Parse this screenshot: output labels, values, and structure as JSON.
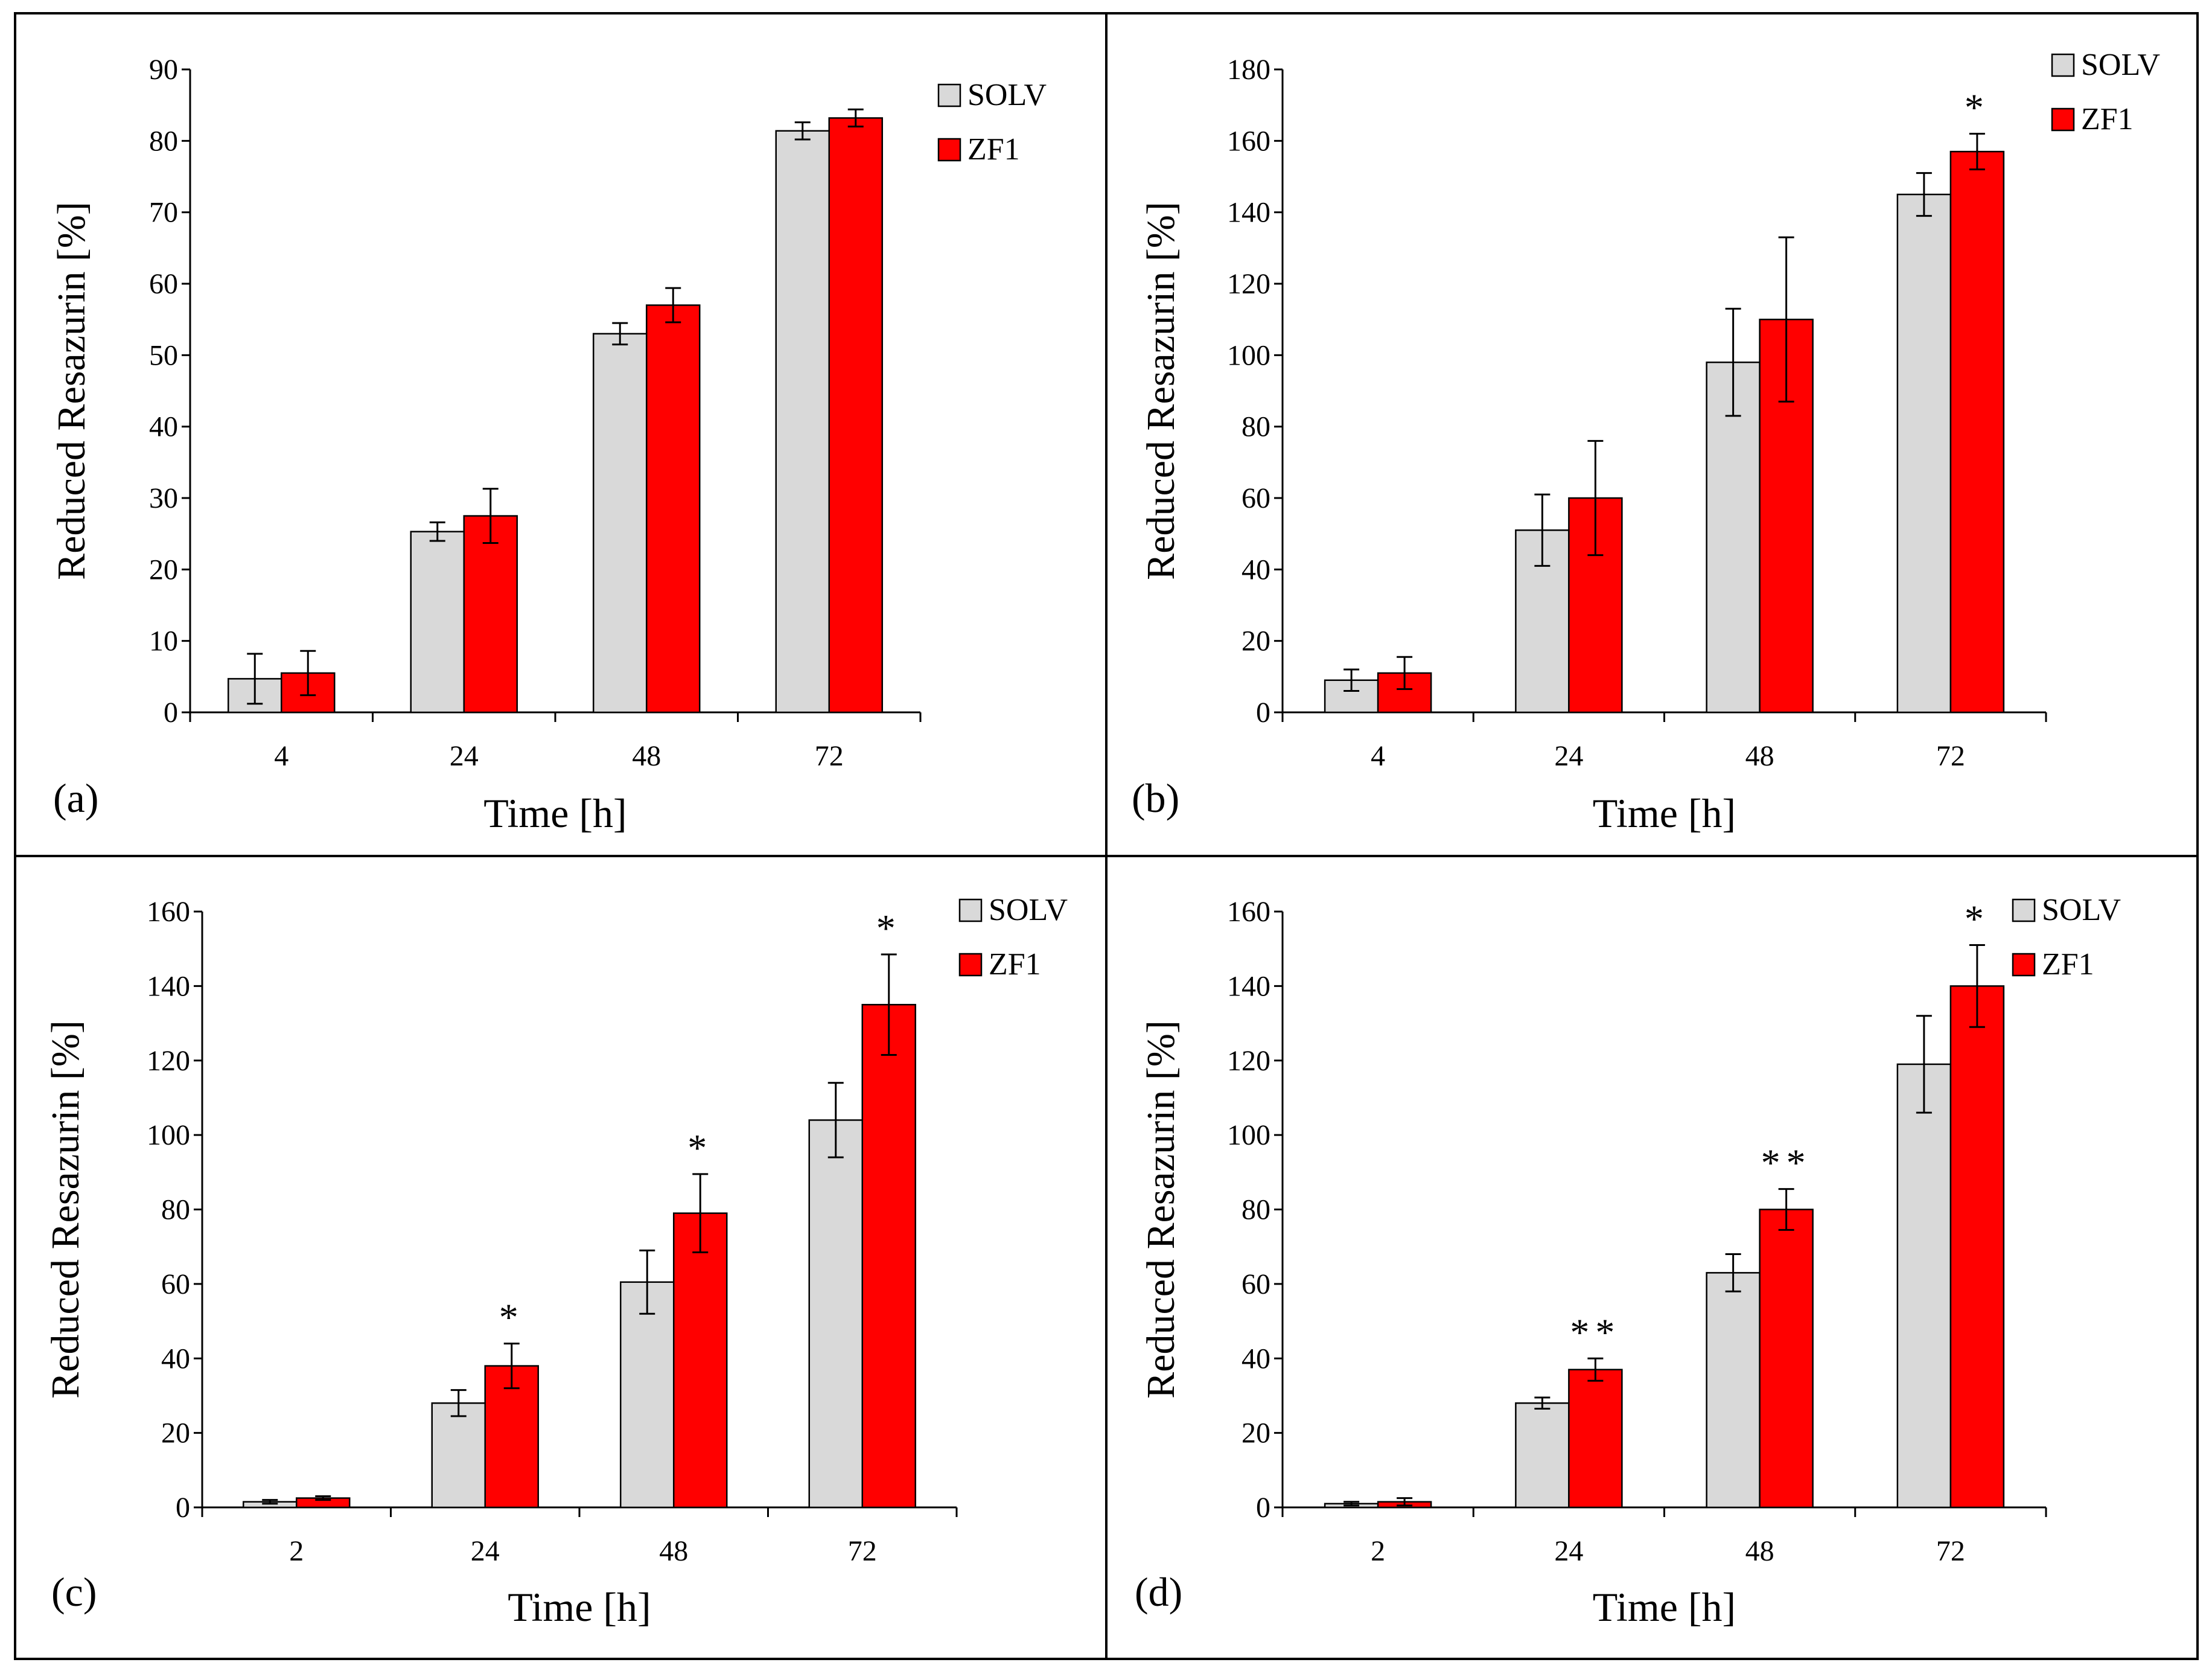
{
  "colors": {
    "solv": "#d9d9d9",
    "zf1": "#ff0000",
    "stroke": "#000000",
    "frame": "#000000"
  },
  "legend_icons": [
    "solv-swatch-icon",
    "zf1-swatch-icon"
  ],
  "chart_data": [
    {
      "type": "bar",
      "panel_label": "(a)",
      "categories": [
        "4",
        "24",
        "48",
        "72"
      ],
      "series": [
        {
          "name": "SOLV",
          "values": [
            4.7,
            25.3,
            53.0,
            81.4
          ],
          "errors": [
            3.5,
            1.3,
            1.5,
            1.2
          ]
        },
        {
          "name": "ZF1",
          "values": [
            5.5,
            27.5,
            57.0,
            83.2
          ],
          "errors": [
            3.1,
            3.8,
            2.4,
            1.2
          ]
        }
      ],
      "significance": [
        "",
        "",
        "",
        ""
      ],
      "xlabel": "Time [h]",
      "ylabel": "Reduced Resazurin [%]",
      "ylim": [
        0,
        90
      ],
      "yticks": [
        0,
        10,
        20,
        30,
        40,
        50,
        60,
        70,
        80,
        90
      ],
      "legend": "top-right",
      "grid": false
    },
    {
      "type": "bar",
      "panel_label": "(b)",
      "categories": [
        "4",
        "24",
        "48",
        "72"
      ],
      "series": [
        {
          "name": "SOLV",
          "values": [
            9,
            51,
            98,
            145
          ],
          "errors": [
            3,
            10,
            15,
            6
          ]
        },
        {
          "name": "ZF1",
          "values": [
            11,
            60,
            110,
            157
          ],
          "errors": [
            4.5,
            16,
            23,
            5
          ]
        }
      ],
      "significance": [
        "",
        "",
        "",
        "*"
      ],
      "xlabel": "Time [h]",
      "ylabel": "Reduced Resazurin [%]",
      "ylim": [
        0,
        180
      ],
      "yticks": [
        0,
        20,
        40,
        60,
        80,
        100,
        120,
        140,
        160,
        180
      ],
      "legend": "top-right",
      "grid": false
    },
    {
      "type": "bar",
      "panel_label": "(c)",
      "categories": [
        "2",
        "24",
        "48",
        "72"
      ],
      "series": [
        {
          "name": "SOLV",
          "values": [
            1.5,
            28,
            60.5,
            104
          ],
          "errors": [
            0.5,
            3.5,
            8.5,
            10
          ]
        },
        {
          "name": "ZF1",
          "values": [
            2.5,
            38,
            79,
            135
          ],
          "errors": [
            0.5,
            6,
            10.5,
            13.5
          ]
        }
      ],
      "significance": [
        "",
        "*",
        "*",
        "*"
      ],
      "xlabel": "Time [h]",
      "ylabel": "Reduced Resazurin [%]",
      "ylim": [
        0,
        160
      ],
      "yticks": [
        0,
        20,
        40,
        60,
        80,
        100,
        120,
        140,
        160
      ],
      "legend": "top-right",
      "grid": false
    },
    {
      "type": "bar",
      "panel_label": "(d)",
      "categories": [
        "2",
        "24",
        "48",
        "72"
      ],
      "series": [
        {
          "name": "SOLV",
          "values": [
            1,
            28,
            63,
            119
          ],
          "errors": [
            0.5,
            1.5,
            5,
            13
          ]
        },
        {
          "name": "ZF1",
          "values": [
            1.5,
            37,
            80,
            140
          ],
          "errors": [
            1,
            3,
            5.5,
            11
          ]
        }
      ],
      "significance": [
        "",
        "**",
        "**",
        "*"
      ],
      "xlabel": "Time [h]",
      "ylabel": "Reduced Resazurin [%]",
      "ylim": [
        0,
        160
      ],
      "yticks": [
        0,
        20,
        40,
        60,
        80,
        100,
        120,
        140,
        160
      ],
      "legend": "top-right",
      "grid": false
    }
  ]
}
